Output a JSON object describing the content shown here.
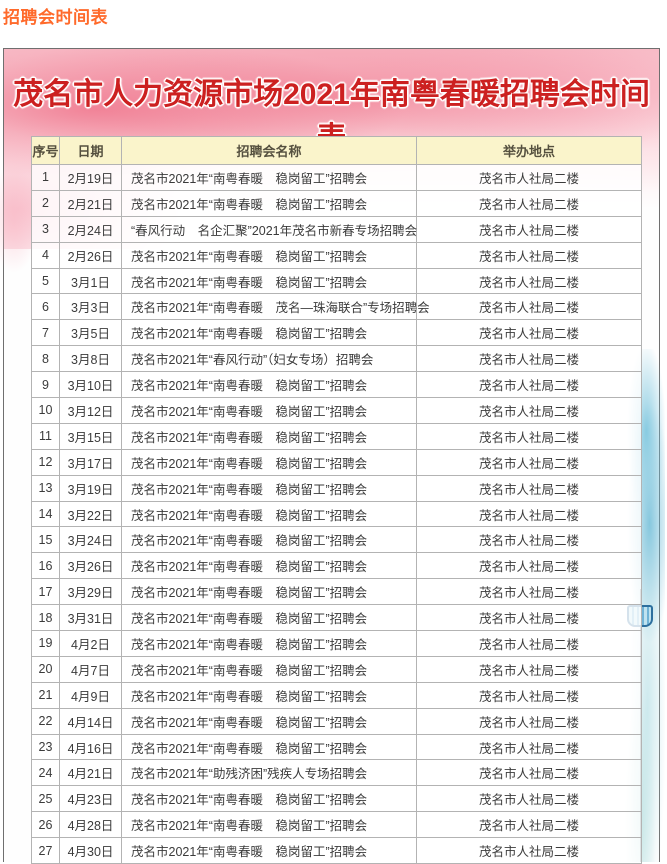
{
  "colors": {
    "heading-orange": "#ff6a2b",
    "title-red": "#cc2020",
    "header-bg": "#faf4cb",
    "header-text": "#55503f",
    "cell-text": "#3b3b3b",
    "grid": "#b3b3b3"
  },
  "page": {
    "heading": "招聘会时间表"
  },
  "poster": {
    "title": "茂名市人力资源市场2021年南粤春暖招聘会时间表",
    "table": {
      "columns": [
        "序号",
        "日期",
        "招聘会名称",
        "举办地点"
      ],
      "rows": [
        {
          "num": "1",
          "date": "2月19日",
          "name": "茂名市2021年“南粤春暖　稳岗留工”招聘会",
          "venue": "茂名市人社局二楼"
        },
        {
          "num": "2",
          "date": "2月21日",
          "name": "茂名市2021年“南粤春暖　稳岗留工”招聘会",
          "venue": "茂名市人社局二楼"
        },
        {
          "num": "3",
          "date": "2月24日",
          "name": "“春风行动　名企汇聚”2021年茂名市新春专场招聘会",
          "venue": "茂名市人社局二楼"
        },
        {
          "num": "4",
          "date": "2月26日",
          "name": "茂名市2021年“南粤春暖　稳岗留工”招聘会",
          "venue": "茂名市人社局二楼"
        },
        {
          "num": "5",
          "date": "3月1日",
          "name": "茂名市2021年“南粤春暖　稳岗留工”招聘会",
          "venue": "茂名市人社局二楼"
        },
        {
          "num": "6",
          "date": "3月3日",
          "name": "茂名市2021年“南粤春暖　茂名—珠海联合”专场招聘会",
          "venue": "茂名市人社局二楼"
        },
        {
          "num": "7",
          "date": "3月5日",
          "name": "茂名市2021年“南粤春暖　稳岗留工”招聘会",
          "venue": "茂名市人社局二楼"
        },
        {
          "num": "8",
          "date": "3月8日",
          "name": "茂名市2021年“春风行动”（妇女专场）招聘会",
          "venue": "茂名市人社局二楼"
        },
        {
          "num": "9",
          "date": "3月10日",
          "name": "茂名市2021年“南粤春暖　稳岗留工”招聘会",
          "venue": "茂名市人社局二楼"
        },
        {
          "num": "10",
          "date": "3月12日",
          "name": "茂名市2021年“南粤春暖　稳岗留工”招聘会",
          "venue": "茂名市人社局二楼"
        },
        {
          "num": "11",
          "date": "3月15日",
          "name": "茂名市2021年“南粤春暖　稳岗留工”招聘会",
          "venue": "茂名市人社局二楼"
        },
        {
          "num": "12",
          "date": "3月17日",
          "name": "茂名市2021年“南粤春暖　稳岗留工”招聘会",
          "venue": "茂名市人社局二楼"
        },
        {
          "num": "13",
          "date": "3月19日",
          "name": "茂名市2021年“南粤春暖　稳岗留工”招聘会",
          "venue": "茂名市人社局二楼"
        },
        {
          "num": "14",
          "date": "3月22日",
          "name": "茂名市2021年“南粤春暖　稳岗留工”招聘会",
          "venue": "茂名市人社局二楼"
        },
        {
          "num": "15",
          "date": "3月24日",
          "name": "茂名市2021年“南粤春暖　稳岗留工”招聘会",
          "venue": "茂名市人社局二楼"
        },
        {
          "num": "16",
          "date": "3月26日",
          "name": "茂名市2021年“南粤春暖　稳岗留工”招聘会",
          "venue": "茂名市人社局二楼"
        },
        {
          "num": "17",
          "date": "3月29日",
          "name": "茂名市2021年“南粤春暖　稳岗留工”招聘会",
          "venue": "茂名市人社局二楼"
        },
        {
          "num": "18",
          "date": "3月31日",
          "name": "茂名市2021年“南粤春暖　稳岗留工”招聘会",
          "venue": "茂名市人社局二楼"
        },
        {
          "num": "19",
          "date": "4月2日",
          "name": "茂名市2021年“南粤春暖　稳岗留工”招聘会",
          "venue": "茂名市人社局二楼"
        },
        {
          "num": "20",
          "date": "4月7日",
          "name": "茂名市2021年“南粤春暖　稳岗留工”招聘会",
          "venue": "茂名市人社局二楼"
        },
        {
          "num": "21",
          "date": "4月9日",
          "name": "茂名市2021年“南粤春暖　稳岗留工”招聘会",
          "venue": "茂名市人社局二楼"
        },
        {
          "num": "22",
          "date": "4月14日",
          "name": "茂名市2021年“南粤春暖　稳岗留工”招聘会",
          "venue": "茂名市人社局二楼"
        },
        {
          "num": "23",
          "date": "4月16日",
          "name": "茂名市2021年“南粤春暖　稳岗留工”招聘会",
          "venue": "茂名市人社局二楼"
        },
        {
          "num": "24",
          "date": "4月21日",
          "name": "茂名市2021年“助残济困”残疾人专场招聘会",
          "venue": "茂名市人社局二楼"
        },
        {
          "num": "25",
          "date": "4月23日",
          "name": "茂名市2021年“南粤春暖　稳岗留工”招聘会",
          "venue": "茂名市人社局二楼"
        },
        {
          "num": "26",
          "date": "4月28日",
          "name": "茂名市2021年“南粤春暖　稳岗留工”招聘会",
          "venue": "茂名市人社局二楼"
        },
        {
          "num": "27",
          "date": "4月30日",
          "name": "茂名市2021年“南粤春暖　稳岗留工”招聘会",
          "venue": "茂名市人社局二楼"
        }
      ]
    }
  }
}
